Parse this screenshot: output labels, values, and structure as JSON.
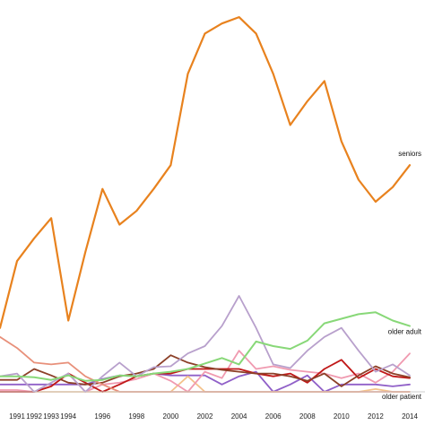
{
  "chart_data": {
    "type": "line",
    "x": [
      1990,
      1991,
      1992,
      1993,
      1994,
      1995,
      1996,
      1997,
      1998,
      1999,
      2000,
      2001,
      2002,
      2003,
      2004,
      2005,
      2006,
      2007,
      2008,
      2009,
      2010,
      2011,
      2012,
      2013,
      2014
    ],
    "x_ticks": [
      "1991",
      "1992",
      "1993",
      "1994",
      "1996",
      "1998",
      "2000",
      "2002",
      "2004",
      "2006",
      "2008",
      "2010",
      "2012",
      "2014"
    ],
    "ylim": [
      0,
      415
    ],
    "grid": false,
    "series": [
      {
        "name": "seniors",
        "color": "#e8821e",
        "width": 2.2,
        "values": [
          70,
          143,
          168,
          190,
          78,
          153,
          222,
          183,
          198,
          222,
          248,
          348,
          392,
          403,
          410,
          392,
          348,
          292,
          318,
          340,
          274,
          232,
          208,
          224,
          248
        ]
      },
      {
        "name": "older adult",
        "color": "#88d878",
        "width": 2.0,
        "values": [
          17,
          17,
          16,
          13,
          18,
          12,
          13,
          18,
          17,
          20,
          22,
          25,
          31,
          37,
          30,
          55,
          50,
          47,
          56,
          75,
          80,
          85,
          87,
          78,
          72
        ]
      },
      {
        "name": "older patient",
        "color": "#e8907a",
        "width": 1.8,
        "values": [
          60,
          48,
          32,
          30,
          32,
          17,
          8,
          0,
          0,
          0,
          0,
          0,
          0,
          0,
          0,
          0,
          0,
          0,
          0,
          0,
          0,
          0,
          0,
          0,
          0
        ]
      },
      {
        "name": "",
        "color": "#b8a0cc",
        "width": 1.8,
        "values": [
          17,
          20,
          0,
          10,
          20,
          0,
          17,
          32,
          17,
          27,
          28,
          42,
          50,
          72,
          105,
          70,
          30,
          26,
          45,
          60,
          70,
          45,
          22,
          30,
          18
        ]
      },
      {
        "name": "",
        "color": "#8c4028",
        "width": 1.8,
        "values": [
          13,
          13,
          25,
          18,
          10,
          8,
          10,
          17,
          20,
          25,
          40,
          32,
          27,
          24,
          22,
          20,
          20,
          17,
          12,
          20,
          6,
          18,
          28,
          20,
          16
        ]
      },
      {
        "name": "",
        "color": "#c01818",
        "width": 1.8,
        "values": [
          0,
          0,
          0,
          6,
          20,
          10,
          0,
          8,
          17,
          20,
          20,
          25,
          25,
          25,
          25,
          20,
          17,
          20,
          10,
          25,
          35,
          15,
          25,
          17,
          15
        ]
      },
      {
        "name": "",
        "color": "#f09ab0",
        "width": 1.8,
        "values": [
          2,
          2,
          0,
          6,
          20,
          0,
          8,
          10,
          14,
          20,
          12,
          0,
          22,
          15,
          45,
          25,
          28,
          24,
          22,
          20,
          15,
          20,
          10,
          22,
          42
        ]
      },
      {
        "name": "",
        "color": "#f4c28c",
        "width": 1.8,
        "values": [
          0,
          0,
          0,
          0,
          0,
          0,
          0,
          0,
          0,
          0,
          0,
          17,
          0,
          0,
          0,
          0,
          0,
          0,
          0,
          0,
          0,
          0,
          3,
          0,
          0
        ]
      },
      {
        "name": "",
        "color": "#9060c8",
        "width": 1.8,
        "values": [
          8,
          8,
          8,
          8,
          8,
          8,
          14,
          18,
          17,
          20,
          18,
          18,
          18,
          8,
          17,
          22,
          0,
          8,
          18,
          0,
          8,
          8,
          8,
          6,
          8
        ]
      }
    ]
  }
}
